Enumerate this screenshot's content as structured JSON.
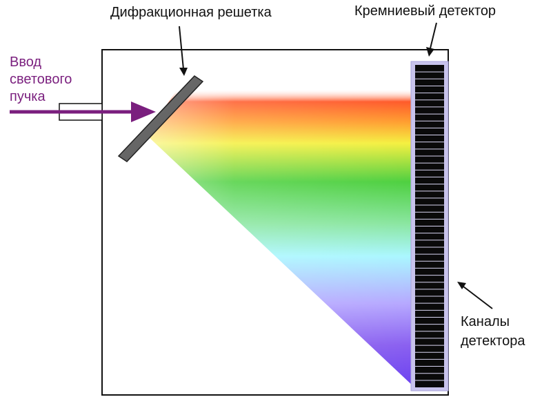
{
  "labels": {
    "grating": "Дифракционная решетка",
    "detector": "Кремниевый детектор",
    "input": "Ввод\nсветового\nпучка",
    "channels": "Каналы\nдетектора"
  },
  "colors": {
    "input_arrow": "#7a1f7e",
    "spectrum": [
      "#ff5a2a",
      "#ffa030",
      "#f5f040",
      "#4ed040",
      "#aaf7ff",
      "#8a60f0",
      "#6a40f0"
    ],
    "detector_frame": "#c8c3ec",
    "detector_cells": "#0a0a0a"
  },
  "detector_channel_count": 46
}
